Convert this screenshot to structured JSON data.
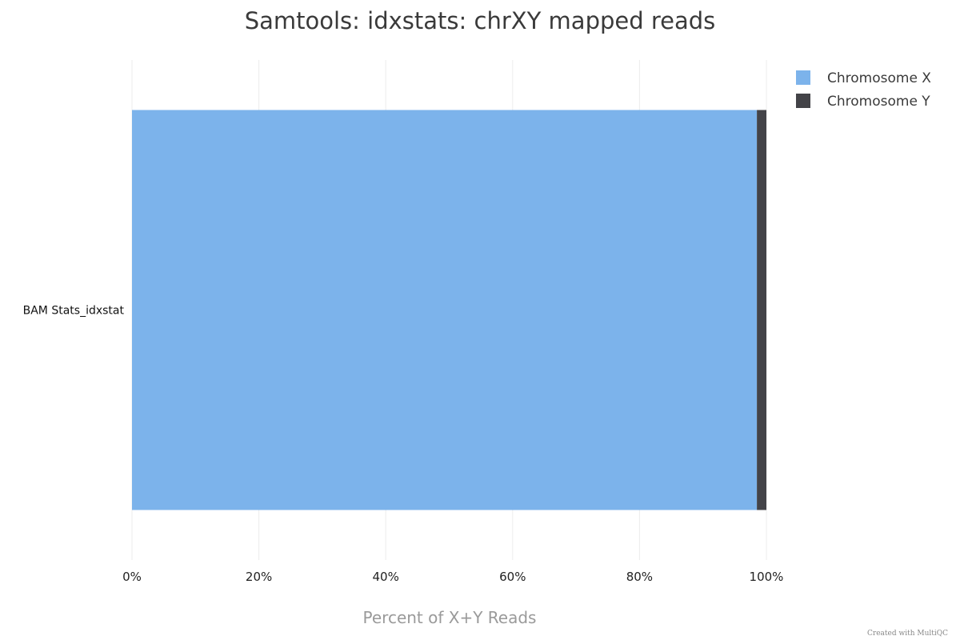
{
  "chart_data": {
    "type": "bar",
    "orientation": "horizontal",
    "stacked": true,
    "title": "Samtools: idxstats: chrXY mapped reads",
    "xlabel": "Percent of X+Y Reads",
    "ylabel": "",
    "xlim": [
      0,
      100
    ],
    "x_ticks": [
      "0%",
      "20%",
      "40%",
      "60%",
      "80%",
      "100%"
    ],
    "categories": [
      "BAM Stats_idxstat"
    ],
    "series": [
      {
        "name": "Chromosome X",
        "color": "#7cb3eb",
        "values": [
          98.5
        ]
      },
      {
        "name": "Chromosome Y",
        "color": "#434348",
        "values": [
          1.5
        ]
      }
    ],
    "legend": "top-right",
    "grid": true
  },
  "footer": {
    "credit": "Created with MultiQC"
  }
}
